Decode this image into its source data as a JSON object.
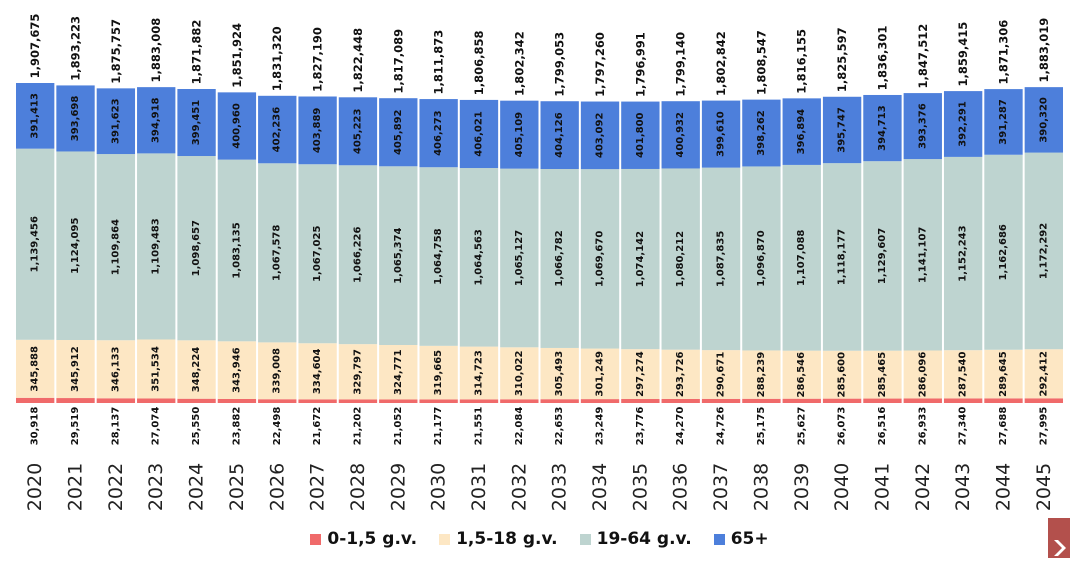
{
  "chart_data": {
    "type": "stacked-bar",
    "categories": [
      "2020",
      "2021",
      "2022",
      "2023",
      "2024",
      "2025",
      "2026",
      "2027",
      "2028",
      "2029",
      "2030",
      "2031",
      "2032",
      "2033",
      "2034",
      "2035",
      "2036",
      "2037",
      "2038",
      "2039",
      "2040",
      "2041",
      "2042",
      "2043",
      "2044",
      "2045"
    ],
    "series": [
      {
        "name": "0-1,5 g.v.",
        "color": "#f06a6a",
        "values": [
          30918,
          29519,
          28137,
          27074,
          25550,
          23882,
          22498,
          21672,
          21202,
          21052,
          21177,
          21551,
          22084,
          22653,
          23249,
          23776,
          24270,
          24726,
          25175,
          25627,
          26073,
          26516,
          26933,
          27340,
          27688,
          27995
        ]
      },
      {
        "name": "1,5-18 g.v.",
        "color": "#fde7c4",
        "values": [
          345888,
          345912,
          346133,
          351534,
          348224,
          343946,
          339008,
          334604,
          329797,
          324771,
          319665,
          314723,
          310022,
          305493,
          301249,
          297274,
          293726,
          290671,
          288239,
          286546,
          285600,
          285465,
          286096,
          287540,
          289645,
          292412
        ]
      },
      {
        "name": "19-64 g.v.",
        "color": "#bed4d0",
        "values": [
          1139456,
          1124095,
          1109864,
          1109483,
          1098657,
          1083135,
          1067578,
          1067025,
          1066226,
          1065374,
          1064758,
          1064563,
          1065127,
          1066782,
          1069670,
          1074142,
          1080212,
          1087835,
          1096870,
          1107088,
          1118177,
          1129607,
          1141107,
          1152243,
          1162686,
          1172292
        ]
      },
      {
        "name": "65+",
        "color": "#4d7fdb",
        "values": [
          391413,
          393698,
          391623,
          394918,
          399451,
          400960,
          402236,
          403889,
          405223,
          405892,
          406273,
          406021,
          405109,
          404126,
          403092,
          401800,
          400932,
          399610,
          398262,
          396894,
          395747,
          394713,
          393376,
          392291,
          391287,
          390320
        ]
      }
    ],
    "value_labels": {
      "0-1,5 g.v.": [
        "30,918",
        "29,519",
        "28,137",
        "27,074",
        "25,550",
        "23,882",
        "22,498",
        "21,672",
        "21,202",
        "21,052",
        "21,177",
        "21,551",
        "22,084",
        "22,653",
        "23,249",
        "23,776",
        "24,270",
        "24,726",
        "25,175",
        "25,627",
        "26,073",
        "26,516",
        "26,933",
        "27,340",
        "27,688",
        "27,995"
      ],
      "1,5-18 g.v.": [
        "345,888",
        "345,912",
        "346,133",
        "351,534",
        "348,224",
        "343,946",
        "339,008",
        "334,604",
        "329,797",
        "324,771",
        "319,665",
        "314,723",
        "310,022",
        "305,493",
        "301,249",
        "297,274",
        "293,726",
        "290,671",
        "288,239",
        "286,546",
        "285,600",
        "285,465",
        "286,096",
        "287,540",
        "289,645",
        "292,412"
      ],
      "19-64 g.v.": [
        "1,139,456",
        "1,124,095",
        "1,109,864",
        "1,109,483",
        "1,098,657",
        "1,083,135",
        "1,067,578",
        "1,067,025",
        "1,066,226",
        "1,065,374",
        "1,064,758",
        "1,064,563",
        "1,065,127",
        "1,066,782",
        "1,069,670",
        "1,074,142",
        "1,080,212",
        "1,087,835",
        "1,096,870",
        "1,107,088",
        "1,118,177",
        "1,129,607",
        "1,141,107",
        "1,152,243",
        "1,162,686",
        "1,172,292"
      ],
      "65+": [
        "391,413",
        "393,698",
        "391,623",
        "394,918",
        "399,451",
        "400,960",
        "402,236",
        "403,889",
        "405,223",
        "405,892",
        "406,273",
        "406,021",
        "405,109",
        "404,126",
        "403,092",
        "401,800",
        "400,932",
        "399,610",
        "398,262",
        "396,894",
        "395,747",
        "394,713",
        "393,376",
        "392,291",
        "391,287",
        "390,320"
      ]
    },
    "totals": [
      1907675,
      1893223,
      1875757,
      1883008,
      1871882,
      1851924,
      1831320,
      1827190,
      1822448,
      1817089,
      1811873,
      1806858,
      1802342,
      1799053,
      1797260,
      1796991,
      1799140,
      1802842,
      1808547,
      1816155,
      1825597,
      1836301,
      1847512,
      1859415,
      1871306,
      1883019
    ],
    "total_labels": [
      "1,907,675",
      "1,893,223",
      "1,875,757",
      "1,883,008",
      "1,871,882",
      "1,851,924",
      "1,831,320",
      "1,827,190",
      "1,822,448",
      "1,817,089",
      "1,811,873",
      "1,806,858",
      "1,802,342",
      "1,799,053",
      "1,797,260",
      "1,796,991",
      "1,799,140",
      "1,802,842",
      "1,808,547",
      "1,816,155",
      "1,825,597",
      "1,836,301",
      "1,847,512",
      "1,859,415",
      "1,871,306",
      "1,883,019"
    ],
    "legend_position": "bottom",
    "grid": false
  },
  "legend": {
    "items": [
      {
        "label": "0-1,5 g.v.",
        "color": "#f06a6a"
      },
      {
        "label": "1,5-18 g.v.",
        "color": "#fde7c4"
      },
      {
        "label": "19-64 g.v.",
        "color": "#bed4d0"
      },
      {
        "label": "65+",
        "color": "#4d7fdb"
      }
    ]
  },
  "logo": {
    "icon": "brand-logo-icon",
    "color": "#b3504c"
  }
}
